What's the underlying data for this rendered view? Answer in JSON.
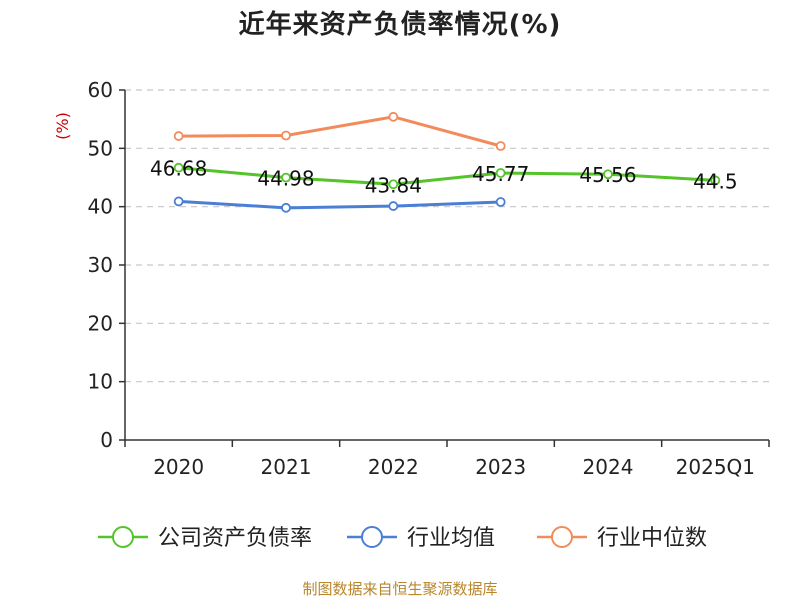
{
  "source": "制图数据来自恒生聚源数据库",
  "colors": {
    "company": "#55c42a",
    "avg": "#4b7fd6",
    "median": "#f28b5b",
    "axis": "#333333",
    "grid": "#c8c8c8"
  },
  "chart_data": {
    "type": "line",
    "title": "近年来资产负债率情况(%)",
    "ylabel": "(%)",
    "xlabel": "",
    "categories": [
      "2020",
      "2021",
      "2022",
      "2023",
      "2024",
      "2025Q1"
    ],
    "ylim": [
      0,
      60
    ],
    "yticks": [
      0,
      10,
      20,
      30,
      40,
      50,
      60
    ],
    "grid": true,
    "legend_position": "bottom",
    "series": [
      {
        "name": "公司资产负债率",
        "color": "#55c42a",
        "values": [
          46.68,
          44.98,
          43.84,
          45.77,
          45.56,
          44.5
        ],
        "labels": [
          "46.68",
          "44.98",
          "43.84",
          "45.77",
          "45.56",
          "44.5"
        ]
      },
      {
        "name": "行业均值",
        "color": "#4b7fd6",
        "values": [
          40.9,
          39.8,
          40.1,
          40.8,
          null,
          null
        ]
      },
      {
        "name": "行业中位数",
        "color": "#f28b5b",
        "values": [
          52.1,
          52.2,
          55.4,
          50.4,
          null,
          null
        ]
      }
    ]
  }
}
